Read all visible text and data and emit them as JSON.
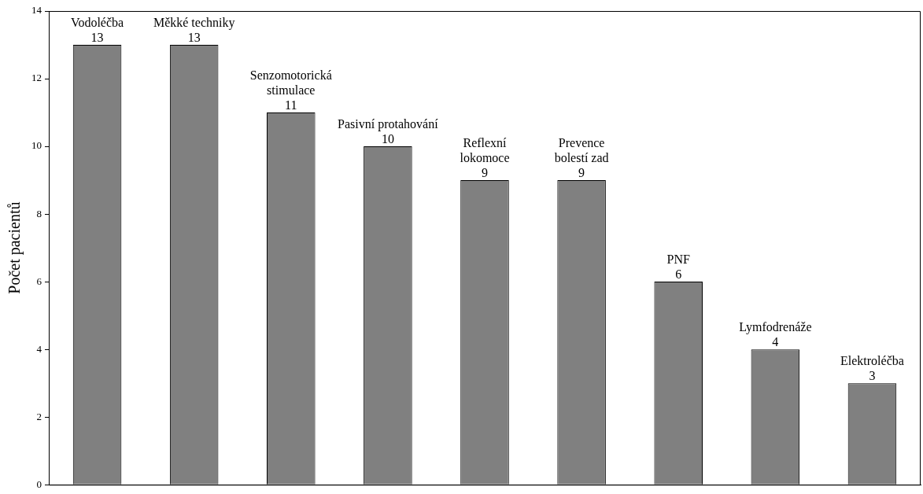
{
  "chart_data": {
    "type": "bar",
    "ylabel": "Počet pacientů",
    "categories": [
      "Vodoléčba",
      "Měkké techniky",
      "Senzomotorická\nstimulace",
      "Pasivní protahování",
      "Reflexní\nlokomoce",
      "Prevence\nbolestí zad",
      "PNF",
      "Lymfodrenáže",
      "Elektroléčba"
    ],
    "values": [
      13,
      13,
      11,
      10,
      9,
      9,
      6,
      4,
      3
    ],
    "color": "#808080",
    "ylim": [
      0,
      14
    ],
    "yticks": [
      0,
      2,
      4,
      6,
      8,
      10,
      12,
      14
    ],
    "grid": false,
    "legend": false,
    "data_labels": true,
    "tick_labels": "y"
  }
}
